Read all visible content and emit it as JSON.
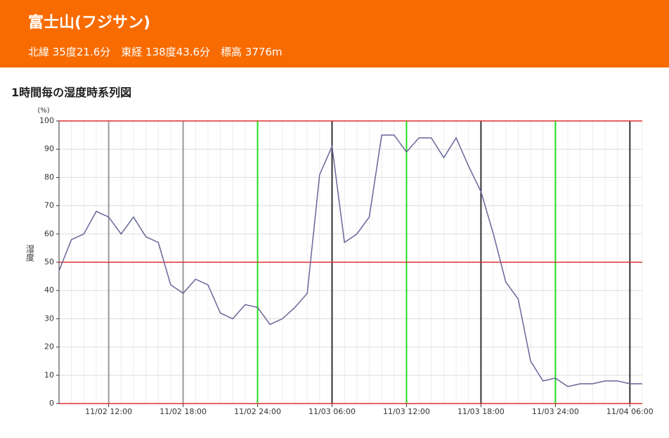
{
  "header": {
    "title": "富士山(フジサン)",
    "subtitle": "北緯 35度21.6分　東経 138度43.6分　標高 3776m"
  },
  "section_title": "1時間毎の湿度時系列図",
  "chart_data": {
    "type": "line",
    "ylabel": "湿度",
    "yunit": "(%)",
    "categories": [
      null,
      null,
      null,
      null,
      "11/02 12:00",
      null,
      null,
      null,
      null,
      null,
      "11/02 18:00",
      null,
      null,
      null,
      null,
      null,
      "11/02 24:00",
      null,
      null,
      null,
      null,
      null,
      "11/03 06:00",
      null,
      null,
      null,
      null,
      null,
      "11/03 12:00",
      null,
      null,
      null,
      null,
      null,
      "11/03 18:00",
      null,
      null,
      null,
      null,
      null,
      "11/03 24:00",
      null,
      null,
      null,
      null,
      null,
      "11/04 06:00",
      null
    ],
    "values": [
      47,
      58,
      60,
      68,
      66,
      60,
      66,
      59,
      57,
      42,
      39,
      44,
      42,
      32,
      30,
      35,
      34,
      28,
      30,
      34,
      39,
      81,
      91,
      57,
      60,
      66,
      95,
      95,
      89,
      94,
      94,
      87,
      94,
      84,
      75,
      60,
      43,
      37,
      15,
      8,
      9,
      6,
      7,
      7,
      8,
      8,
      7,
      7
    ],
    "color": "#666699",
    "ylim": [
      0,
      100
    ],
    "yticks": [
      0,
      10,
      20,
      30,
      40,
      50,
      60,
      70,
      80,
      90,
      100
    ],
    "grid": true,
    "reference_lines": [
      0,
      50,
      100
    ],
    "reference_color": "#e03030",
    "vline_colors": [
      "#999999",
      "#999999",
      "#22dd22",
      "#333333",
      "#22dd22",
      "#333333",
      "#22dd22",
      "#333333"
    ]
  }
}
